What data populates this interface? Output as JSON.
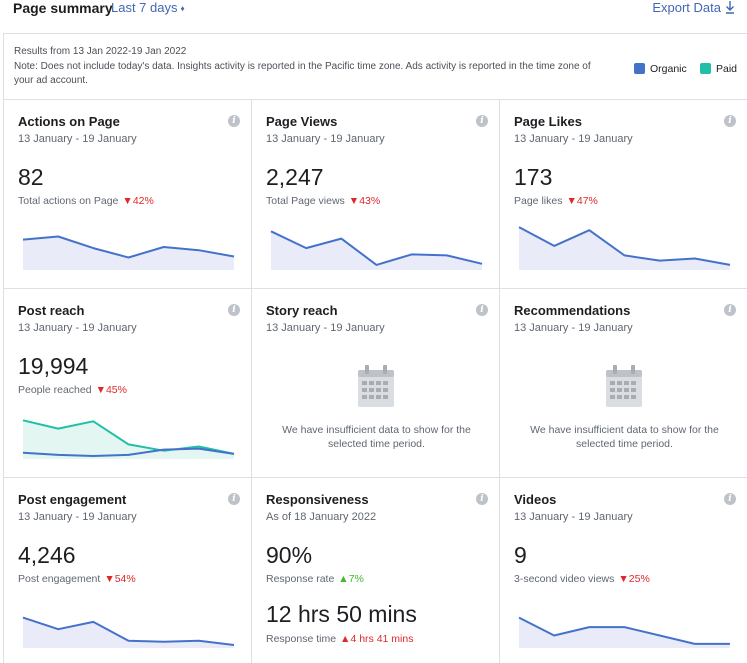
{
  "header": {
    "title": "Page summary",
    "period": "Last 7 days",
    "period_caret": "♦",
    "export_label": "Export Data"
  },
  "notice": {
    "results": "Results from 13 Jan 2022-19 Jan 2022",
    "note": "Note: Does not include today's data. Insights activity is reported in the Pacific time zone. Ads activity is reported in the time zone of your ad account."
  },
  "legend": [
    {
      "label": "Organic",
      "color": "#4472ca"
    },
    {
      "label": "Paid",
      "color": "#20c0a8"
    }
  ],
  "cards": {
    "actions": {
      "title": "Actions on Page",
      "date": "13 January - 19 January",
      "value": "82",
      "label": "Total actions on Page",
      "delta": "42%",
      "series": [
        27,
        30,
        19,
        10,
        20,
        17,
        11
      ]
    },
    "views": {
      "title": "Page Views",
      "date": "13 January - 19 January",
      "value": "2,247",
      "label": "Total Page views",
      "delta": "43%",
      "series": [
        35,
        19,
        28,
        3,
        13,
        12,
        4
      ]
    },
    "likes": {
      "title": "Page Likes",
      "date": "13 January - 19 January",
      "value": "173",
      "label": "Page likes",
      "delta": "47%",
      "series": [
        39,
        21,
        36,
        12,
        7,
        9,
        3
      ]
    },
    "reach": {
      "title": "Post reach",
      "date": "13 January - 19 January",
      "value": "19,994",
      "label": "People reached",
      "delta": "45%",
      "organic": [
        4,
        2,
        1,
        2,
        7,
        8,
        3
      ],
      "paid": [
        35,
        27,
        34,
        12,
        6,
        10,
        3
      ]
    },
    "story": {
      "title": "Story reach",
      "date": "13 January - 19 January",
      "message": "We have insufficient data to show for the selected time period."
    },
    "recommendations": {
      "title": "Recommendations",
      "date": "13 January - 19 January",
      "message": "We have insufficient data to show for the selected time period."
    },
    "engagement": {
      "title": "Post engagement",
      "date": "13 January - 19 January",
      "value": "4,246",
      "label": "Post engagement",
      "delta": "54%",
      "series": [
        27,
        16,
        23,
        5,
        4,
        5,
        1
      ]
    },
    "responsiveness": {
      "title": "Responsiveness",
      "date": "As of 18 January 2022",
      "rate_value": "90%",
      "rate_label": "Response rate",
      "rate_delta": "7%",
      "time_value": "12 hrs 50 mins",
      "time_label": "Response time",
      "time_delta": "4 hrs 41 mins"
    },
    "videos": {
      "title": "Videos",
      "date": "13 January - 19 January",
      "value": "9",
      "label": "3-second video views",
      "delta": "25%",
      "series": [
        27,
        10,
        18,
        18,
        10,
        2,
        2
      ]
    }
  },
  "info_icon": "i",
  "arrow_down": "▼",
  "arrow_up": "▲"
}
